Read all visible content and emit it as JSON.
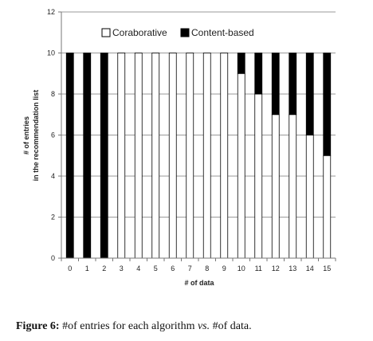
{
  "chart_data": {
    "type": "bar",
    "stacked": true,
    "categories": [
      "0",
      "1",
      "2",
      "3",
      "4",
      "5",
      "6",
      "7",
      "8",
      "9",
      "10",
      "11",
      "12",
      "13",
      "14",
      "15"
    ],
    "series": [
      {
        "name": "Coraborative",
        "color": "#ffffff",
        "values": [
          0,
          0,
          0,
          10,
          10,
          10,
          10,
          10,
          10,
          10,
          9,
          8,
          7,
          7,
          6,
          5
        ]
      },
      {
        "name": "Content-based",
        "color": "#000000",
        "values": [
          10,
          10,
          10,
          0,
          0,
          0,
          0,
          0,
          0,
          0,
          1,
          2,
          3,
          3,
          4,
          5
        ]
      }
    ],
    "xlabel": "# of data",
    "ylabel_lines": [
      "# of entries",
      "in the recommendation list"
    ],
    "ylim": [
      0,
      12
    ],
    "yticks": [
      "0",
      "2",
      "4",
      "6",
      "8",
      "10",
      "12"
    ],
    "grid": true,
    "legend_position": "top-right"
  },
  "caption": {
    "label": "Figure 6:",
    "text_before": " #of entries for each algorithm ",
    "vs": "vs.",
    "text_after": " #of data."
  }
}
